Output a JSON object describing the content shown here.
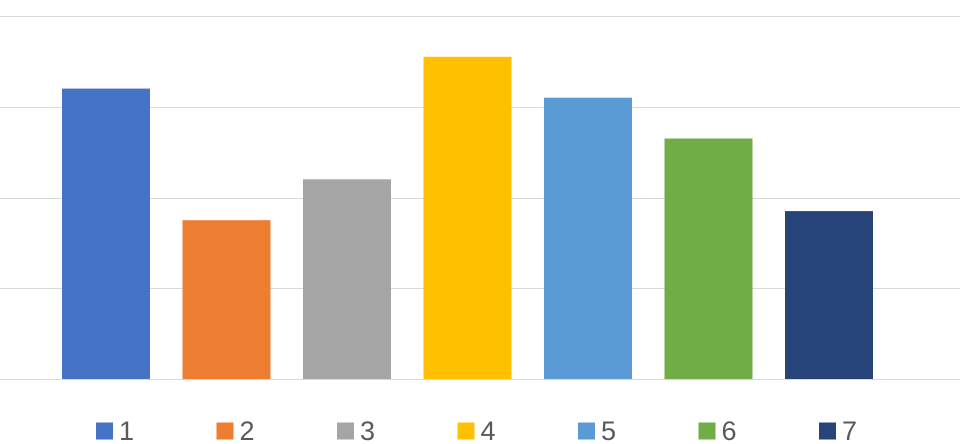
{
  "chart_data": {
    "type": "bar",
    "categories": [
      "1",
      "2",
      "3",
      "4",
      "5",
      "6",
      "7"
    ],
    "values": [
      3.2,
      1.75,
      2.2,
      3.55,
      3.1,
      2.65,
      1.85
    ],
    "ylim": [
      0,
      4
    ],
    "grid": true,
    "legend_position": "bottom",
    "colors": [
      "#4472C4",
      "#ED7D31",
      "#A5A5A5",
      "#FFC000",
      "#5B9BD5",
      "#70AD47",
      "#264478"
    ],
    "xlabel": "",
    "ylabel": "",
    "title": ""
  }
}
